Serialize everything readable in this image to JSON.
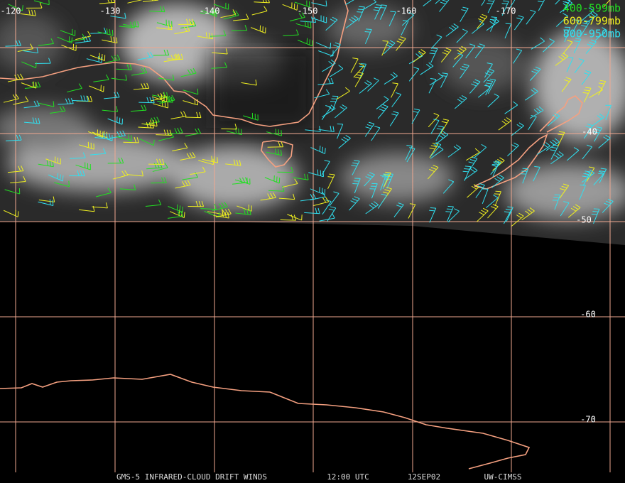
{
  "map": {
    "longitude_labels": [
      "-120",
      "-130",
      "-140",
      "-150",
      "-160",
      "-170"
    ],
    "latitude_labels": [
      "-40",
      "-50",
      "-60",
      "-70"
    ],
    "legend": [
      "400-599mb",
      "600-799mb",
      "800-950mb"
    ],
    "footer": [
      "GMS-5 INFRARED-CLOUD DRIFT WINDS",
      "12:00 UTC",
      "12SEP02",
      "UW-CIMSS"
    ]
  }
}
